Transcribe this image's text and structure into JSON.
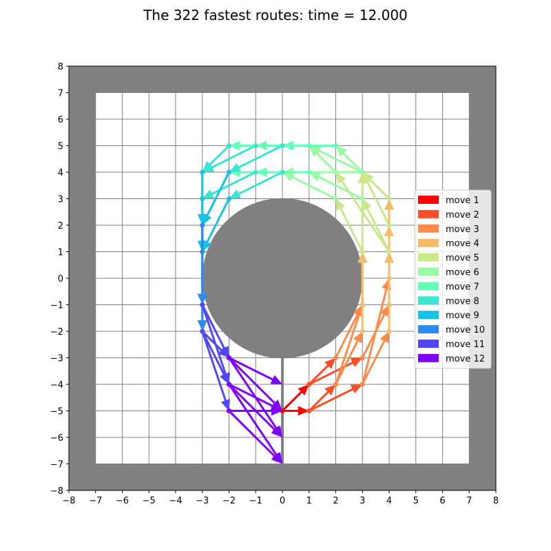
{
  "chart_data": {
    "type": "quiver",
    "title": "The 322 fastest routes: time = 12.000",
    "xlim": [
      -8,
      8
    ],
    "ylim": [
      -8,
      8
    ],
    "xticks": [
      -8,
      -7,
      -6,
      -5,
      -4,
      -3,
      -2,
      -1,
      0,
      1,
      2,
      3,
      4,
      5,
      6,
      7,
      8
    ],
    "yticks": [
      -8,
      -7,
      -6,
      -5,
      -4,
      -3,
      -2,
      -1,
      0,
      1,
      2,
      3,
      4,
      5,
      6,
      7,
      8
    ],
    "tick_labels_x": [
      "−8",
      "−7",
      "−6",
      "−5",
      "−4",
      "−3",
      "−2",
      "−1",
      "0",
      "1",
      "2",
      "3",
      "4",
      "5",
      "6",
      "7",
      "8"
    ],
    "tick_labels_y": [
      "−8",
      "−7",
      "−6",
      "−5",
      "−4",
      "−3",
      "−2",
      "−1",
      "0",
      "1",
      "2",
      "3",
      "4",
      "5",
      "6",
      "7",
      "8"
    ],
    "grid": true,
    "track": {
      "outer_wall": [
        -8,
        8
      ],
      "inner_area": [
        -7,
        7
      ],
      "obstacle_circle": {
        "center": [
          0,
          0
        ],
        "radius": 3
      },
      "start_line": {
        "x": 0,
        "y_from": -7,
        "y_to": -3
      }
    },
    "legend": {
      "position": "center-right"
    },
    "colors": {
      "wall": "#808080",
      "grid": "#808080",
      "background": "#ffffff",
      "move_1": "#ff0000",
      "move_2": "#ff4d27",
      "move_3": "#ff8a4a",
      "move_4": "#f6bc68",
      "move_5": "#c8e88a",
      "move_6": "#98fca0",
      "move_7": "#66ffb8",
      "move_8": "#3ae6d0",
      "move_9": "#14c2e8",
      "move_10": "#2a8cf2",
      "move_11": "#5247fb",
      "move_12": "#8000ff"
    },
    "series": [
      {
        "name": "move 1",
        "color": "#ff0000",
        "arrows": [
          [
            [
              0,
              -5
            ],
            [
              1,
              -5
            ]
          ],
          [
            [
              0,
              -5
            ],
            [
              1,
              -4
            ]
          ]
        ]
      },
      {
        "name": "move 2",
        "color": "#ff4d27",
        "arrows": [
          [
            [
              1,
              -5
            ],
            [
              2,
              -4
            ]
          ],
          [
            [
              1,
              -5
            ],
            [
              3,
              -4
            ]
          ],
          [
            [
              1,
              -4
            ],
            [
              2,
              -3
            ]
          ],
          [
            [
              1,
              -4
            ],
            [
              3,
              -3
            ]
          ]
        ]
      },
      {
        "name": "move 3",
        "color": "#ff8a4a",
        "arrows": [
          [
            [
              2,
              -4
            ],
            [
              3,
              -2
            ]
          ],
          [
            [
              3,
              -4
            ],
            [
              4,
              -2
            ]
          ],
          [
            [
              2,
              -3
            ],
            [
              3,
              -1
            ]
          ],
          [
            [
              3,
              -3
            ],
            [
              4,
              -1
            ]
          ],
          [
            [
              2,
              -4
            ],
            [
              3,
              -1
            ]
          ],
          [
            [
              3,
              -4
            ],
            [
              4,
              0
            ]
          ]
        ]
      },
      {
        "name": "move 4",
        "color": "#f6bc68",
        "arrows": [
          [
            [
              3,
              -2
            ],
            [
              3,
              1
            ]
          ],
          [
            [
              4,
              -2
            ],
            [
              4,
              1
            ]
          ],
          [
            [
              3,
              -1
            ],
            [
              3,
              1
            ]
          ],
          [
            [
              4,
              -1
            ],
            [
              4,
              1
            ]
          ],
          [
            [
              4,
              -1
            ],
            [
              4,
              3
            ]
          ],
          [
            [
              4,
              0
            ],
            [
              4,
              2
            ]
          ]
        ]
      },
      {
        "name": "move 5",
        "color": "#c8e88a",
        "arrows": [
          [
            [
              3,
              1
            ],
            [
              3,
              4
            ]
          ],
          [
            [
              4,
              1
            ],
            [
              3,
              3
            ]
          ],
          [
            [
              4,
              2
            ],
            [
              3,
              4
            ]
          ],
          [
            [
              4,
              3
            ],
            [
              3,
              4
            ]
          ],
          [
            [
              3,
              1
            ],
            [
              2,
              3
            ]
          ],
          [
            [
              4,
              1
            ],
            [
              2,
              4
            ]
          ]
        ]
      },
      {
        "name": "move 6",
        "color": "#98fca0",
        "arrows": [
          [
            [
              3,
              4
            ],
            [
              1,
              5
            ]
          ],
          [
            [
              3,
              3
            ],
            [
              1,
              4
            ]
          ],
          [
            [
              3,
              4
            ],
            [
              0,
              4
            ]
          ],
          [
            [
              2,
              3
            ],
            [
              0,
              4
            ]
          ],
          [
            [
              2,
              4
            ],
            [
              1,
              5
            ]
          ],
          [
            [
              3,
              4
            ],
            [
              2,
              5
            ]
          ]
        ]
      },
      {
        "name": "move 7",
        "color": "#66ffb8",
        "arrows": [
          [
            [
              1,
              5
            ],
            [
              0,
              5
            ]
          ],
          [
            [
              1,
              4
            ],
            [
              -1,
              4
            ]
          ],
          [
            [
              0,
              4
            ],
            [
              -2,
              4
            ]
          ],
          [
            [
              2,
              5
            ],
            [
              0,
              5
            ]
          ],
          [
            [
              0,
              5
            ],
            [
              -2,
              5
            ]
          ],
          [
            [
              1,
              5
            ],
            [
              -1,
              5
            ]
          ]
        ]
      },
      {
        "name": "move 8",
        "color": "#3ae6d0",
        "arrows": [
          [
            [
              -1,
              4
            ],
            [
              -3,
              3
            ]
          ],
          [
            [
              -2,
              4
            ],
            [
              -3,
              2
            ]
          ],
          [
            [
              0,
              5
            ],
            [
              -2,
              4
            ]
          ],
          [
            [
              -1,
              5
            ],
            [
              -3,
              4
            ]
          ],
          [
            [
              -2,
              5
            ],
            [
              -3,
              4
            ]
          ],
          [
            [
              0,
              4
            ],
            [
              -2,
              3
            ]
          ]
        ]
      },
      {
        "name": "move 9",
        "color": "#14c2e8",
        "arrows": [
          [
            [
              -3,
              3
            ],
            [
              -3,
              1
            ]
          ],
          [
            [
              -3,
              4
            ],
            [
              -3,
              2
            ]
          ],
          [
            [
              -2,
              3
            ],
            [
              -3,
              1
            ]
          ],
          [
            [
              -2,
              4
            ],
            [
              -3,
              2
            ]
          ],
          [
            [
              -3,
              2
            ],
            [
              -3,
              1
            ]
          ]
        ]
      },
      {
        "name": "move 10",
        "color": "#2a8cf2",
        "arrows": [
          [
            [
              -3,
              1
            ],
            [
              -3,
              -1
            ]
          ],
          [
            [
              -3,
              2
            ],
            [
              -3,
              -2
            ]
          ],
          [
            [
              -3,
              1
            ],
            [
              -3,
              -2
            ]
          ],
          [
            [
              -3,
              2
            ],
            [
              -3,
              -1
            ]
          ]
        ]
      },
      {
        "name": "move 11",
        "color": "#5247fb",
        "arrows": [
          [
            [
              -3,
              -1
            ],
            [
              -2,
              -3
            ]
          ],
          [
            [
              -3,
              -2
            ],
            [
              -2,
              -5
            ]
          ],
          [
            [
              -3,
              -1
            ],
            [
              -2,
              -4
            ]
          ],
          [
            [
              -3,
              -2
            ],
            [
              -2,
              -4
            ]
          ],
          [
            [
              -3,
              -2
            ],
            [
              -2,
              -3
            ]
          ]
        ]
      },
      {
        "name": "move 12",
        "color": "#8000ff",
        "arrows": [
          [
            [
              -2,
              -3
            ],
            [
              0,
              -4
            ]
          ],
          [
            [
              -2,
              -3
            ],
            [
              0,
              -5
            ]
          ],
          [
            [
              -2,
              -4
            ],
            [
              0,
              -5
            ]
          ],
          [
            [
              -2,
              -4
            ],
            [
              0,
              -6
            ]
          ],
          [
            [
              -2,
              -5
            ],
            [
              0,
              -7
            ]
          ],
          [
            [
              -2,
              -3
            ],
            [
              0,
              -6
            ]
          ],
          [
            [
              -2,
              -4
            ],
            [
              0,
              -7
            ]
          ],
          [
            [
              -2,
              -5
            ],
            [
              0,
              -5
            ]
          ]
        ]
      }
    ]
  }
}
